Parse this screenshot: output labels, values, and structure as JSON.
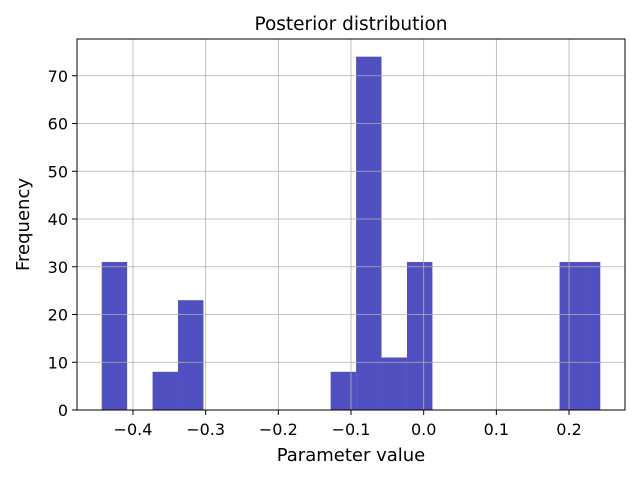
{
  "chart_data": {
    "type": "bar",
    "title": "Posterior distribution",
    "xlabel": "Parameter value",
    "ylabel": "Frequency",
    "xlim": [
      -0.477,
      0.277
    ],
    "ylim": [
      0,
      77.7
    ],
    "xticks": [
      -0.4,
      -0.3,
      -0.2,
      -0.1,
      0.0,
      0.1,
      0.2
    ],
    "xtick_labels": [
      "−0.4",
      "−0.3",
      "−0.2",
      "−0.1",
      "0.0",
      "0.1",
      "0.2"
    ],
    "yticks": [
      0,
      10,
      20,
      30,
      40,
      50,
      60,
      70
    ],
    "ytick_labels": [
      "0",
      "10",
      "20",
      "30",
      "40",
      "50",
      "60",
      "70"
    ],
    "grid": true,
    "bar_color": "#5050c0",
    "bins": [
      {
        "x0": -0.443,
        "x1": -0.408,
        "count": 31
      },
      {
        "x0": -0.408,
        "x1": -0.373,
        "count": 0
      },
      {
        "x0": -0.373,
        "x1": -0.338,
        "count": 8
      },
      {
        "x0": -0.338,
        "x1": -0.303,
        "count": 23
      },
      {
        "x0": -0.303,
        "x1": -0.268,
        "count": 0
      },
      {
        "x0": -0.268,
        "x1": -0.233,
        "count": 0
      },
      {
        "x0": -0.233,
        "x1": -0.198,
        "count": 0
      },
      {
        "x0": -0.198,
        "x1": -0.163,
        "count": 0
      },
      {
        "x0": -0.163,
        "x1": -0.128,
        "count": 0
      },
      {
        "x0": -0.128,
        "x1": -0.093,
        "count": 8
      },
      {
        "x0": -0.093,
        "x1": -0.058,
        "count": 74
      },
      {
        "x0": -0.058,
        "x1": -0.023,
        "count": 11
      },
      {
        "x0": -0.023,
        "x1": 0.012,
        "count": 31
      },
      {
        "x0": 0.012,
        "x1": 0.047,
        "count": 0
      },
      {
        "x0": 0.047,
        "x1": 0.082,
        "count": 0
      },
      {
        "x0": 0.082,
        "x1": 0.117,
        "count": 0
      },
      {
        "x0": 0.117,
        "x1": 0.152,
        "count": 0
      },
      {
        "x0": 0.152,
        "x1": 0.187,
        "count": 0
      },
      {
        "x0": 0.187,
        "x1": 0.222,
        "count": 31
      },
      {
        "x0": 0.222,
        "x1": 0.243,
        "count": 31
      }
    ]
  }
}
